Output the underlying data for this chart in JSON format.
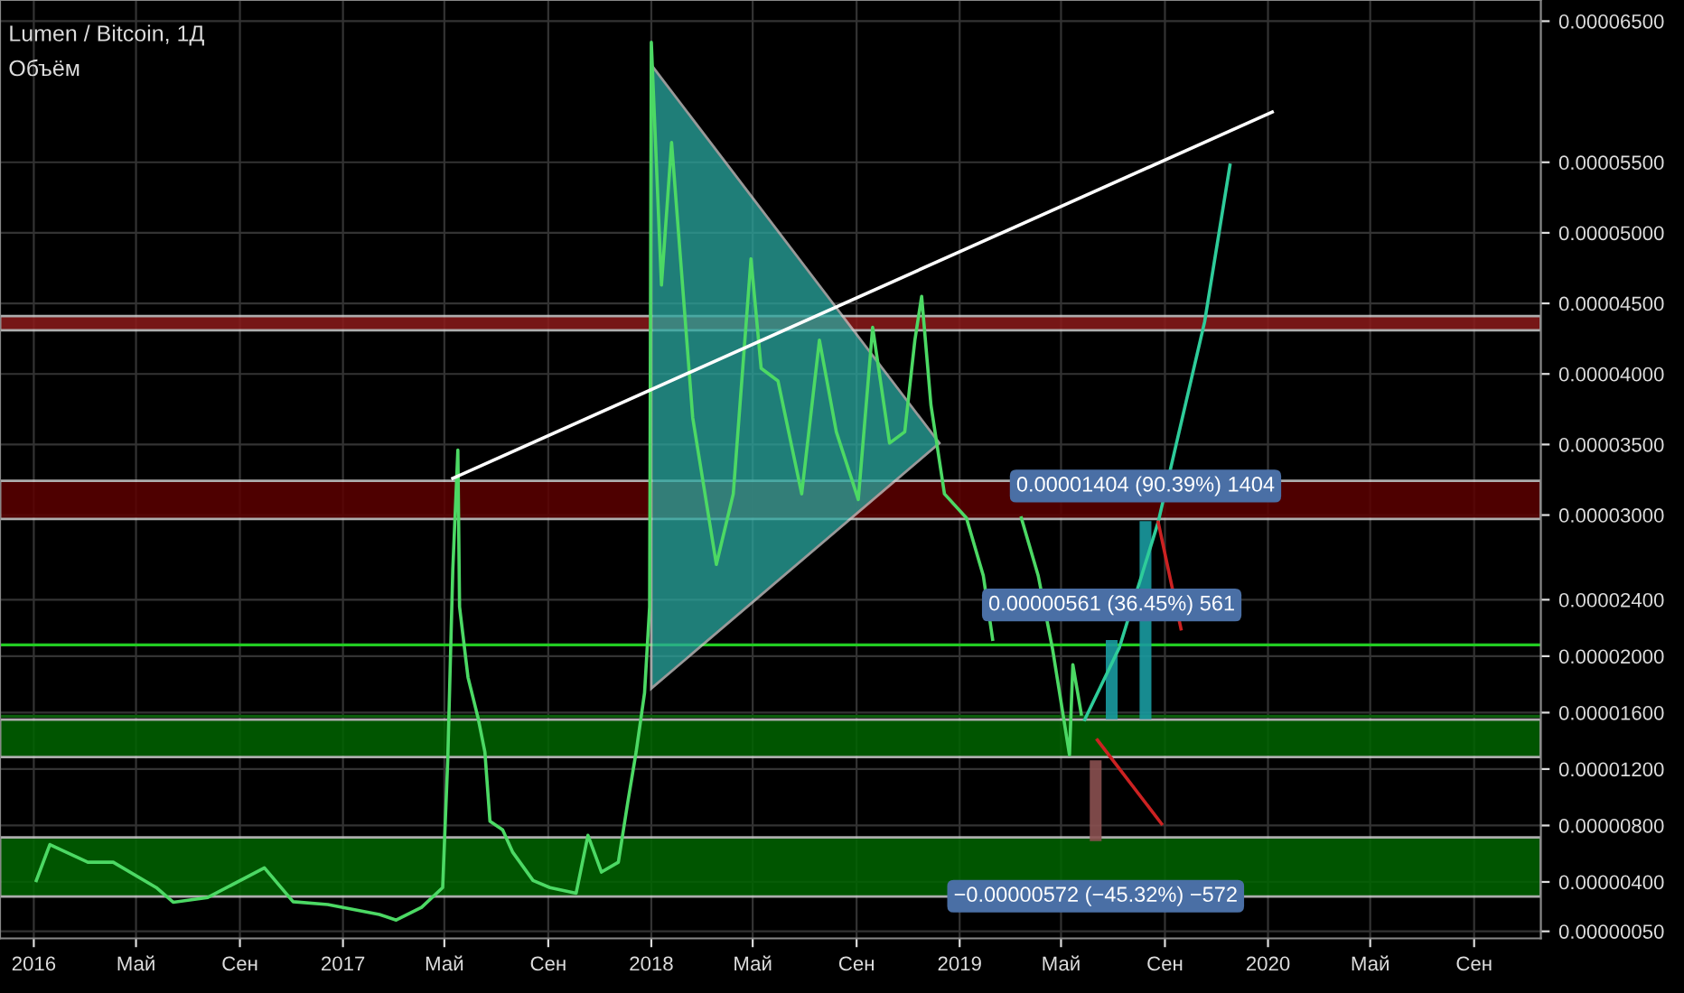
{
  "chart_data": {
    "type": "line",
    "title": "Lumen / Bitcoin, 1Д",
    "subtitle": "Объём",
    "xlim": [
      "2015-11-22",
      "2020-11-19"
    ],
    "xticks": [
      {
        "value": "2016-01-01",
        "label": "2016"
      },
      {
        "value": "2016-05-01",
        "label": "Май"
      },
      {
        "value": "2016-09-01",
        "label": "Сен"
      },
      {
        "value": "2017-01-01",
        "label": "2017"
      },
      {
        "value": "2017-05-01",
        "label": "Май"
      },
      {
        "value": "2017-09-01",
        "label": "Сен"
      },
      {
        "value": "2018-01-01",
        "label": "2018"
      },
      {
        "value": "2018-05-01",
        "label": "Май"
      },
      {
        "value": "2018-09-01",
        "label": "Сен"
      },
      {
        "value": "2019-01-01",
        "label": "2019"
      },
      {
        "value": "2019-05-01",
        "label": "Май"
      },
      {
        "value": "2019-09-01",
        "label": "Сен"
      },
      {
        "value": "2020-01-01",
        "label": "2020"
      },
      {
        "value": "2020-05-01",
        "label": "Май"
      },
      {
        "value": "2020-09-01",
        "label": "Сен"
      }
    ],
    "ylim": [
      0,
      6.65e-05
    ],
    "yticks": [
      {
        "value": 5e-07,
        "label": "0.00000050"
      },
      {
        "value": 4e-06,
        "label": "0.00000400"
      },
      {
        "value": 8e-06,
        "label": "0.00000800"
      },
      {
        "value": 1.2e-05,
        "label": "0.00001200"
      },
      {
        "value": 1.6e-05,
        "label": "0.00001600"
      },
      {
        "value": 2e-05,
        "label": "0.00002000"
      },
      {
        "value": 2.4e-05,
        "label": "0.00002400"
      },
      {
        "value": 3e-05,
        "label": "0.00003000"
      },
      {
        "value": 3.5e-05,
        "label": "0.00003500"
      },
      {
        "value": 4e-05,
        "label": "0.00004000"
      },
      {
        "value": 4.5e-05,
        "label": "0.00004500"
      },
      {
        "value": 5e-05,
        "label": "0.00005000"
      },
      {
        "value": 5.5e-05,
        "label": "0.00005500"
      },
      {
        "value": 6.5e-05,
        "label": "0.00006500"
      }
    ],
    "grid": true,
    "marker": "none",
    "line_style": "solid",
    "bands": [
      {
        "axis": "y",
        "from": 4.31e-05,
        "to": 4.41e-05,
        "color": "#8b1a1a"
      },
      {
        "axis": "y",
        "from": 2.973e-05,
        "to": 3.243e-05,
        "color": "#5c0000"
      },
      {
        "axis": "y",
        "from": 1.285e-05,
        "to": 1.55e-05,
        "color": "#006400"
      },
      {
        "axis": "y",
        "from": 2.97e-06,
        "to": 7.15e-06,
        "color": "#006400"
      }
    ],
    "ref_lines": [
      {
        "axis": "y",
        "value": 2.08e-05,
        "color": "#22cc22",
        "line_style": "solid"
      },
      {
        "axis": "y",
        "value": 1.575e-05,
        "color": "#0b5e0b",
        "line_style": "solid"
      }
    ],
    "series": [
      {
        "type": "area",
        "color": "#2aa8a0",
        "x": [
          "2018-01-01",
          "2018-12-08",
          "2018-01-01",
          "2018-01-01"
        ],
        "values": [
          6.19e-05,
          3.51e-05,
          1.771e-05,
          6.19e-05
        ]
      },
      {
        "color": "#4cd964",
        "x": [
          "2016-01-04",
          "2016-01-20",
          "2016-03-05",
          "2016-04-04",
          "2016-05-25",
          "2016-06-14",
          "2016-07-25",
          "2016-09-30",
          "2016-11-03",
          "2016-12-14",
          "2017-02-13",
          "2017-03-05",
          "2017-04-04",
          "2017-04-29",
          "2017-05-05",
          "2017-05-11",
          "2017-05-17",
          "2017-05-19",
          "2017-05-29",
          "2017-06-10",
          "2017-06-18",
          "2017-06-24",
          "2017-07-09",
          "2017-07-21",
          "2017-08-14",
          "2017-09-03",
          "2017-10-04",
          "2017-10-18",
          "2017-11-03",
          "2017-11-23",
          "2017-12-04",
          "2017-12-14",
          "2017-12-24",
          "2017-12-30",
          "2018-01-01",
          "2018-01-13",
          "2018-01-25",
          "2018-02-19",
          "2018-03-19",
          "2018-04-08",
          "2018-04-29",
          "2018-05-11",
          "2018-05-31",
          "2018-06-28",
          "2018-07-19",
          "2018-08-08",
          "2018-09-03",
          "2018-09-20",
          "2018-10-10",
          "2018-10-28",
          "2018-11-09",
          "2018-11-17",
          "2018-11-28",
          "2018-12-14",
          "2019-01-09",
          "2019-01-29",
          "2019-02-09",
          "2019-03-05",
          "2019-03-15",
          "2019-04-04",
          "2019-04-21",
          "2019-05-11",
          "2019-05-15",
          "2019-05-25"
        ],
        "values": [
          4.1e-06,
          6.65e-06,
          5.4e-06,
          5.4e-06,
          3.6e-06,
          2.56e-06,
          2.9e-06,
          5e-06,
          2.6e-06,
          2.4e-06,
          1.7e-06,
          1.3e-06,
          2.2e-06,
          3.6e-06,
          1.26e-05,
          2.613e-05,
          3.46e-05,
          2.35e-05,
          1.85e-05,
          1.56e-05,
          1.32e-05,
          8.3e-06,
          7.7e-06,
          6.1e-06,
          4.1e-06,
          3.6e-06,
          3.2e-06,
          7.3e-06,
          4.7e-06,
          5.4e-06,
          9.6e-06,
          1.32e-05,
          1.74e-05,
          2.35e-05,
          6.35e-05,
          4.63e-05,
          5.64e-05,
          3.69e-05,
          2.65e-05,
          3.15e-05,
          4.816e-05,
          4.04e-05,
          3.95e-05,
          3.15e-05,
          4.24e-05,
          3.59e-05,
          3.11e-05,
          4.33e-05,
          3.51e-05,
          3.59e-05,
          4.24e-05,
          4.55e-05,
          3.78e-05,
          3.15e-05,
          2.98e-05,
          2.57e-05,
          2.12e-05,
          null,
          2.98e-05,
          2.57e-05,
          2.05e-05,
          1.3e-05,
          1.94e-05,
          1.59e-05
        ]
      },
      {
        "type": "line",
        "color": "#ffffff",
        "x": [
          "2017-05-11",
          "2020-01-06"
        ],
        "values": [
          3.26e-05,
          5.856e-05
        ]
      },
      {
        "type": "bar",
        "color": "#1a9aa0",
        "x": [
          "2019-06-11",
          "2019-06-30",
          "2019-08-09"
        ],
        "base": [
          1.262e-05,
          1.553e-05,
          1.553e-05
        ],
        "values": [
          -5.72e-06,
          5.61e-06,
          1.404e-05
        ],
        "colors": [
          "#8a5050",
          "#1a9aa0",
          "#1a9aa0"
        ]
      },
      {
        "type": "line",
        "color": "#2ecc9a",
        "x": [
          "2019-05-29",
          "2019-07-09",
          "2019-08-24",
          "2019-10-18",
          "2019-11-17"
        ],
        "values": [
          1.55e-05,
          2.06e-05,
          2.95e-05,
          4.37e-05,
          5.48e-05
        ]
      },
      {
        "type": "line",
        "color": "#cc2222",
        "x": [
          "2019-08-24",
          "2019-09-20"
        ],
        "values": [
          2.95e-05,
          2.194e-05
        ]
      },
      {
        "type": "line",
        "color": "#cc2222",
        "x": [
          "2019-06-13",
          "2019-08-28"
        ],
        "values": [
          1.406e-05,
          8.12e-06
        ]
      }
    ],
    "annotations": [
      {
        "text": "0.00001404 (90.39%) 1404",
        "x": "2019-08-09",
        "y": 2.957e-05
      },
      {
        "text": "0.00000561 (36.45%) 561",
        "x": "2019-06-30",
        "y": 2.114e-05
      },
      {
        "text": "−0.00000572 (−45.32%) −572",
        "x": "2019-06-11",
        "y": 6.9e-06
      }
    ]
  }
}
